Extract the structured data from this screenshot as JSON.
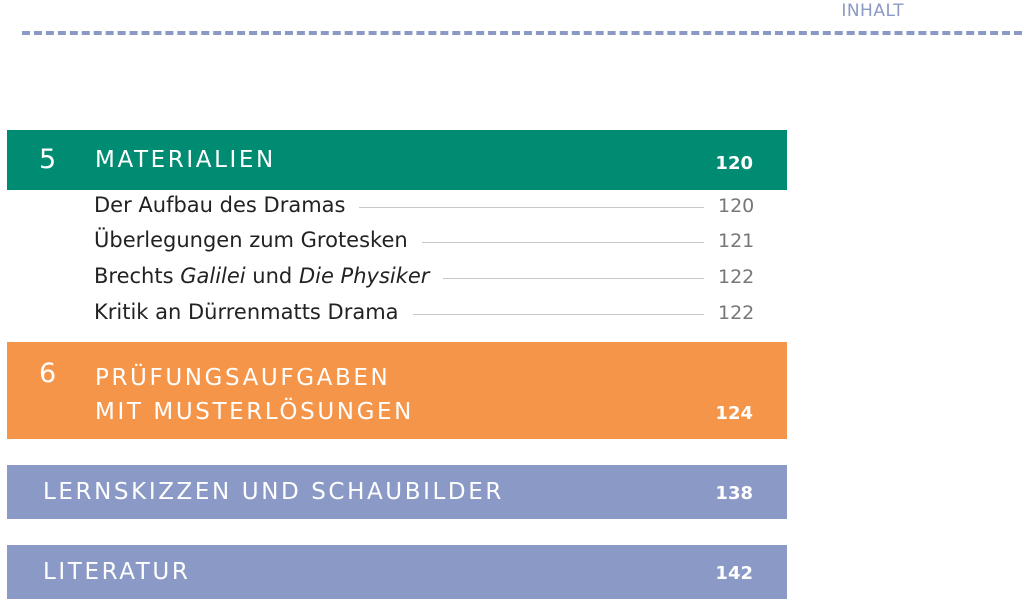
{
  "header": {
    "running_title": "INHALT"
  },
  "sections": {
    "materialien": {
      "number": "5",
      "title": "MATERIALIEN",
      "page": "120",
      "color": "#008b73",
      "entries": [
        {
          "title": "Der Aufbau des Dramas",
          "page": "120"
        },
        {
          "title": "Überlegungen zum Grotesken",
          "page": "121"
        },
        {
          "title_parts": [
            "Brechts ",
            "Galilei",
            " und ",
            "Die Physiker"
          ],
          "page": "122"
        },
        {
          "title": "Kritik an Dürrenmatts Drama",
          "page": "122"
        }
      ]
    },
    "pruefung": {
      "number": "6",
      "title_line1": "PRÜFUNGSAUFGABEN",
      "title_line2": "MIT MUSTERLÖSUNGEN",
      "page": "124",
      "color": "#f5954a"
    },
    "lernskizzen": {
      "title": "LERNSKIZZEN UND SCHAUBILDER",
      "page": "138",
      "color": "#8a99c6"
    },
    "literatur": {
      "title": "LITERATUR",
      "page": "142",
      "color": "#8a99c6"
    }
  }
}
